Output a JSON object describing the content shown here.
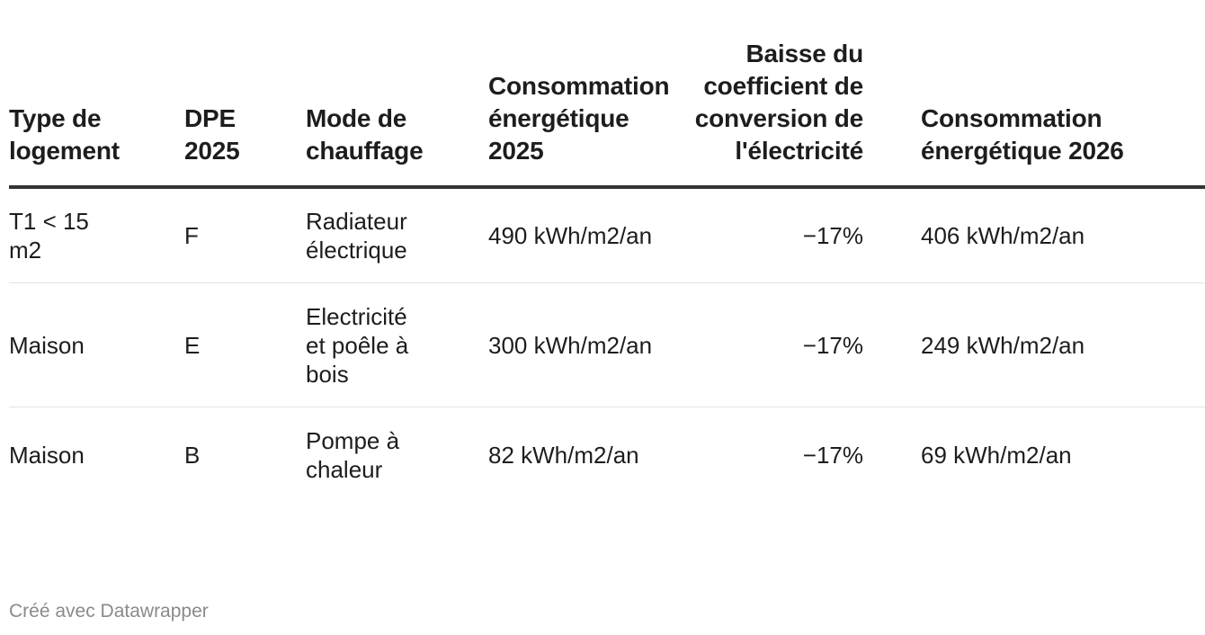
{
  "table": {
    "headers": [
      "Type de logement",
      "DPE 2025",
      "Mode de chauffage",
      "Consommation énergétique 2025",
      "Baisse du coefficient de conversion de l'électricité",
      "Consommation énergétique 2026"
    ],
    "rows": [
      [
        "T1 < 15 m2",
        "F",
        "Radiateur électrique",
        "490 kWh/m2/an",
        "−17%",
        "406 kWh/m2/an"
      ],
      [
        "Maison",
        "E",
        "Electricité et poêle à bois",
        "300 kWh/m2/an",
        "−17%",
        "249 kWh/m2/an"
      ],
      [
        "Maison",
        "B",
        "Pompe à chaleur",
        "82 kWh/m2/an",
        "−17%",
        "69 kWh/m2/an"
      ]
    ]
  },
  "footer": {
    "credit": "Créé avec Datawrapper"
  }
}
